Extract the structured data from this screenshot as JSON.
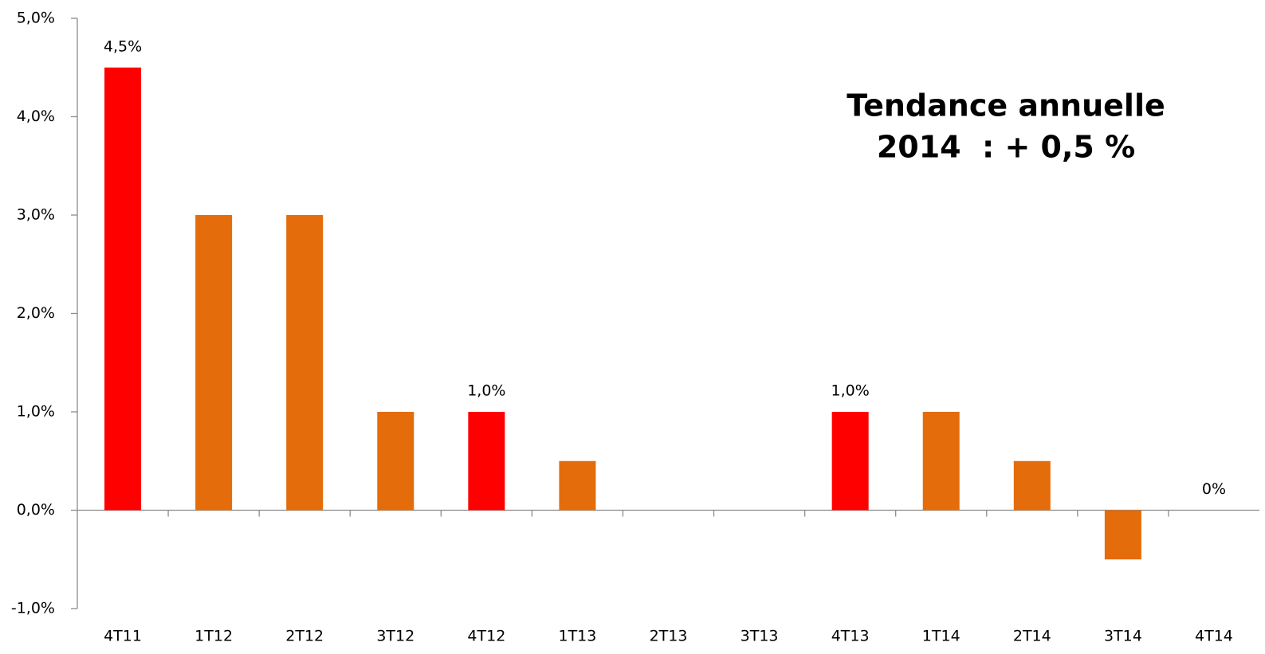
{
  "chart_data": {
    "type": "bar",
    "categories": [
      "4T11",
      "1T12",
      "2T12",
      "3T12",
      "4T12",
      "1T13",
      "2T13",
      "3T13",
      "4T13",
      "1T14",
      "2T14",
      "3T14",
      "4T14"
    ],
    "values": [
      4.5,
      3,
      3,
      1,
      1,
      0.5,
      0,
      0,
      1,
      1,
      0.5,
      -0.5,
      0
    ],
    "value_labels": [
      "4,5%",
      null,
      null,
      null,
      "1,0%",
      null,
      null,
      null,
      "1,0%",
      null,
      null,
      null,
      "0%"
    ],
    "colors": [
      "#ff0000",
      "#e46c0a",
      "#e46c0a",
      "#e46c0a",
      "#ff0000",
      "#e46c0a",
      "#e46c0a",
      "#e46c0a",
      "#ff0000",
      "#e46c0a",
      "#e46c0a",
      "#e46c0a",
      "#e46c0a"
    ],
    "ylim": [
      -1,
      5
    ],
    "yticks": [
      {
        "value": -1,
        "label": "-1,0%"
      },
      {
        "value": 0,
        "label": "0,0%"
      },
      {
        "value": 1,
        "label": "1,0%"
      },
      {
        "value": 2,
        "label": "2,0%"
      },
      {
        "value": 3,
        "label": "3,0%"
      },
      {
        "value": 4,
        "label": "4,0%"
      },
      {
        "value": 5,
        "label": "5,0%"
      }
    ],
    "grid": false,
    "annotation": [
      "Tendance annuelle",
      "2014  : + 0,5 %"
    ]
  }
}
